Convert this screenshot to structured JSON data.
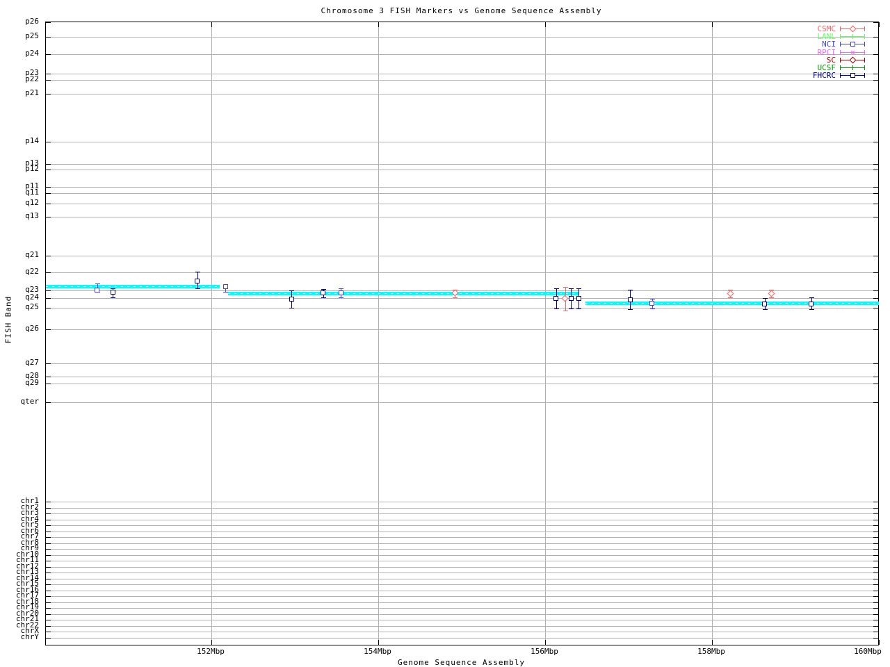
{
  "title": "Chromosome 3 FISH Markers vs Genome Sequence Assembly",
  "chart_data": {
    "type": "scatter",
    "title": "Chromosome 3 FISH Markers vs Genome Sequence Assembly",
    "xlabel": "Genome Sequence Assembly",
    "ylabel": "FISH Band",
    "grid": "on",
    "legend_position": "top-right",
    "x_axis": {
      "unit": "Mbp",
      "xlim_mbp": [
        150.0,
        160.0
      ],
      "ticks": [
        {
          "label": "152Mbp",
          "mbp": 152
        },
        {
          "label": "154Mbp",
          "mbp": 154
        },
        {
          "label": "156Mbp",
          "mbp": 156
        },
        {
          "label": "158Mbp",
          "mbp": 158
        },
        {
          "label": "160Mbp",
          "mbp": 160
        }
      ]
    },
    "y_axis": {
      "band_ticks": [
        {
          "label": "p26",
          "py": 31
        },
        {
          "label": "p25",
          "py": 52
        },
        {
          "label": "p24",
          "py": 77
        },
        {
          "label": "p23",
          "py": 105
        },
        {
          "label": "p22",
          "py": 114
        },
        {
          "label": "p21",
          "py": 134
        },
        {
          "label": "p14",
          "py": 203
        },
        {
          "label": "p13",
          "py": 235
        },
        {
          "label": "p12",
          "py": 243
        },
        {
          "label": "p11",
          "py": 268
        },
        {
          "label": "q11",
          "py": 277
        },
        {
          "label": "q12",
          "py": 292
        },
        {
          "label": "q13",
          "py": 311
        },
        {
          "label": "q21",
          "py": 367
        },
        {
          "label": "q22",
          "py": 391
        },
        {
          "label": "q23",
          "py": 417
        },
        {
          "label": "q24",
          "py": 428
        },
        {
          "label": "q25",
          "py": 442
        },
        {
          "label": "q26",
          "py": 473
        },
        {
          "label": "q27",
          "py": 522
        },
        {
          "label": "q28",
          "py": 541
        },
        {
          "label": "q29",
          "py": 551
        },
        {
          "label": "qter",
          "py": 578
        }
      ],
      "chr_ticks": [
        {
          "label": "chr1",
          "py": 721
        },
        {
          "label": "chr2",
          "py": 730
        },
        {
          "label": "chr3",
          "py": 738
        },
        {
          "label": "chr4",
          "py": 747
        },
        {
          "label": "chr5",
          "py": 755
        },
        {
          "label": "chr6",
          "py": 764
        },
        {
          "label": "chr7",
          "py": 772
        },
        {
          "label": "chr8",
          "py": 781
        },
        {
          "label": "chr9",
          "py": 789
        },
        {
          "label": "chr10",
          "py": 798
        },
        {
          "label": "chr11",
          "py": 806
        },
        {
          "label": "chr12",
          "py": 815
        },
        {
          "label": "chr13",
          "py": 823
        },
        {
          "label": "chr14",
          "py": 832
        },
        {
          "label": "chr15",
          "py": 840
        },
        {
          "label": "chr16",
          "py": 849
        },
        {
          "label": "chr17",
          "py": 857
        },
        {
          "label": "chr18",
          "py": 866
        },
        {
          "label": "chr19",
          "py": 874
        },
        {
          "label": "chr20",
          "py": 883
        },
        {
          "label": "chr21",
          "py": 891
        },
        {
          "label": "chr22",
          "py": 900
        },
        {
          "label": "chrX",
          "py": 908
        },
        {
          "label": "chrY",
          "py": 917
        }
      ]
    },
    "assembly_track": {
      "color": "#00ffff",
      "segments": [
        {
          "x1_mbp": 150.02,
          "x2_mbp": 152.1,
          "py": 411
        },
        {
          "x1_mbp": 152.2,
          "x2_mbp": 156.41,
          "py": 421
        },
        {
          "x1_mbp": 156.48,
          "x2_mbp": 160.0,
          "py": 435
        }
      ]
    },
    "series": [
      {
        "name": "CSMC",
        "color": "#ff6060",
        "symbol": "diamond",
        "points": [
          {
            "x_mbp": 154.92,
            "py": 420,
            "err_lo_py": 416,
            "err_hi_py": 427
          },
          {
            "x_mbp": 156.24,
            "py": 428,
            "err_lo_py": 412,
            "err_hi_py": 446
          },
          {
            "x_mbp": 158.22,
            "py": 421,
            "err_lo_py": 416,
            "err_hi_py": 427
          },
          {
            "x_mbp": 158.71,
            "py": 421,
            "err_lo_py": 416,
            "err_hi_py": 427
          }
        ]
      },
      {
        "name": "LANL",
        "color": "#60ff60",
        "symbol": "plus",
        "points": []
      },
      {
        "name": "NCI",
        "color": "#4040ff",
        "symbol": "square",
        "points": [
          {
            "x_mbp": 150.63,
            "py": 416,
            "err_lo_py": 407,
            "err_hi_py": 419
          },
          {
            "x_mbp": 152.17,
            "py": 411,
            "err_lo_py": 408,
            "err_hi_py": 419
          },
          {
            "x_mbp": 153.55,
            "py": 420,
            "err_lo_py": 414,
            "err_hi_py": 427
          },
          {
            "x_mbp": 157.28,
            "py": 435,
            "err_lo_py": 429,
            "err_hi_py": 443
          }
        ]
      },
      {
        "name": "RPCI",
        "color": "#ff60ff",
        "symbol": "cross",
        "points": []
      },
      {
        "name": "SC",
        "color": "#a00000",
        "symbol": "diamond",
        "points": []
      },
      {
        "name": "UCSF",
        "color": "#00a000",
        "symbol": "plus",
        "points": []
      },
      {
        "name": "FHCRC",
        "color": "#000090",
        "symbol": "square",
        "points": [
          {
            "x_mbp": 150.82,
            "py": 419,
            "err_lo_py": 414,
            "err_hi_py": 427
          },
          {
            "x_mbp": 151.83,
            "py": 403,
            "err_lo_py": 390,
            "err_hi_py": 414
          },
          {
            "x_mbp": 152.96,
            "py": 429,
            "err_lo_py": 417,
            "err_hi_py": 442
          },
          {
            "x_mbp": 153.34,
            "py": 420,
            "err_lo_py": 415,
            "err_hi_py": 427
          },
          {
            "x_mbp": 156.13,
            "py": 428,
            "err_lo_py": 414,
            "err_hi_py": 443
          },
          {
            "x_mbp": 156.31,
            "py": 428,
            "err_lo_py": 414,
            "err_hi_py": 443
          },
          {
            "x_mbp": 156.4,
            "py": 428,
            "err_lo_py": 414,
            "err_hi_py": 443
          },
          {
            "x_mbp": 157.02,
            "py": 430,
            "err_lo_py": 416,
            "err_hi_py": 444
          },
          {
            "x_mbp": 158.63,
            "py": 436,
            "err_lo_py": 428,
            "err_hi_py": 444
          },
          {
            "x_mbp": 159.19,
            "py": 436,
            "err_lo_py": 427,
            "err_hi_py": 444
          }
        ]
      }
    ]
  },
  "colors": {
    "grid": "#b0b0b0",
    "border": "#000000",
    "assembly": "#00ffff"
  }
}
